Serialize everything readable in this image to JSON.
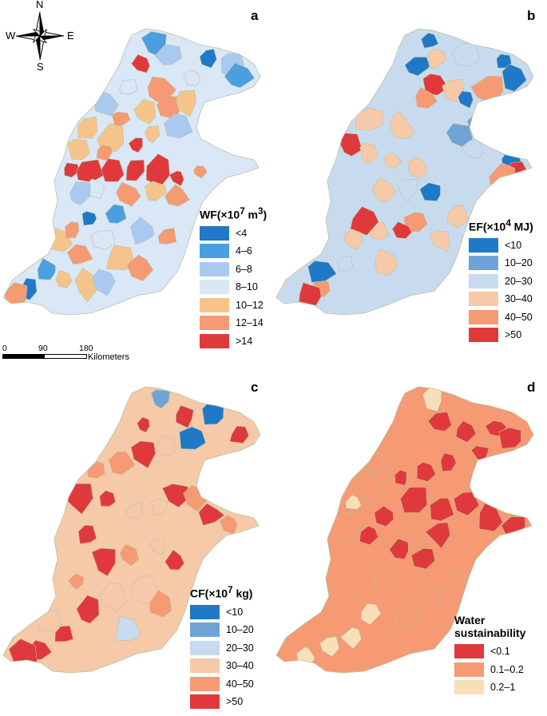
{
  "compass": {
    "north": "N",
    "south": "S",
    "east": "E",
    "west": "W"
  },
  "scale": {
    "ticks": [
      "0",
      "90",
      "180"
    ],
    "unit": "Kilometers"
  },
  "panels": [
    {
      "label": "a",
      "legend_title_html": "WF(×10<sup>7</sup> m<sup>3</sup>)",
      "classes": [
        {
          "label": "<4",
          "color": "#1f78c8"
        },
        {
          "label": "4–6",
          "color": "#4a9fdf"
        },
        {
          "label": "6–8",
          "color": "#a9c9f0"
        },
        {
          "label": "8–10",
          "color": "#d9e7f7"
        },
        {
          "label": "10–12",
          "color": "#f6c48a"
        },
        {
          "label": "12–14",
          "color": "#f59a72"
        },
        {
          "label": ">14",
          "color": "#e0393b"
        }
      ],
      "base_color": "#d9e7f7"
    },
    {
      "label": "b",
      "legend_title_html": "EF(×10<sup>4</sup> MJ)",
      "classes": [
        {
          "label": "<10",
          "color": "#1f78c8"
        },
        {
          "label": "10–20",
          "color": "#6fa3d6"
        },
        {
          "label": "20–30",
          "color": "#c8dbee"
        },
        {
          "label": "30–40",
          "color": "#f6c9a8"
        },
        {
          "label": "40–50",
          "color": "#f59a72"
        },
        {
          "label": ">50",
          "color": "#e0393b"
        }
      ],
      "base_color": "#c8dbee"
    },
    {
      "label": "c",
      "legend_title_html": "CF(×10<sup>7</sup> kg)",
      "classes": [
        {
          "label": "<10",
          "color": "#1f78c8"
        },
        {
          "label": "10–20",
          "color": "#6fa3d6"
        },
        {
          "label": "20–30",
          "color": "#c8dbee"
        },
        {
          "label": "30–40",
          "color": "#f6c9a8"
        },
        {
          "label": "40–50",
          "color": "#f59a72"
        },
        {
          "label": ">50",
          "color": "#e0393b"
        }
      ],
      "base_color": "#f6c9a8"
    },
    {
      "label": "d",
      "legend_title": "Water sustainability",
      "classes": [
        {
          "label": "<0.1",
          "color": "#e0393b"
        },
        {
          "label": "0.1–0.2",
          "color": "#f59a72"
        },
        {
          "label": "0.2–1",
          "color": "#f9dfb8"
        }
      ],
      "base_color": "#f59a72"
    }
  ]
}
